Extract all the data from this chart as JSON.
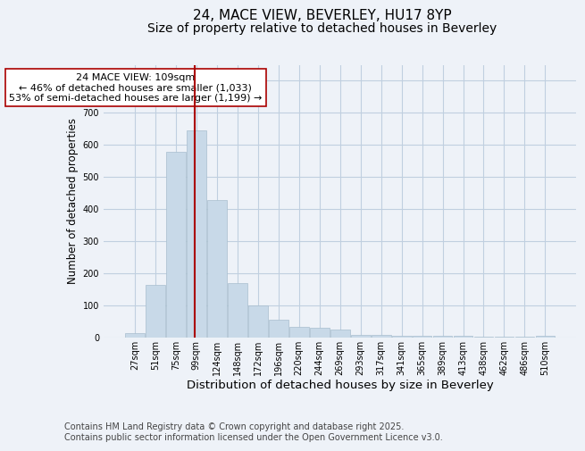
{
  "title1": "24, MACE VIEW, BEVERLEY, HU17 8YP",
  "title2": "Size of property relative to detached houses in Beverley",
  "xlabel": "Distribution of detached houses by size in Beverley",
  "ylabel": "Number of detached properties",
  "categories": [
    "27sqm",
    "51sqm",
    "75sqm",
    "99sqm",
    "124sqm",
    "148sqm",
    "172sqm",
    "196sqm",
    "220sqm",
    "244sqm",
    "269sqm",
    "293sqm",
    "317sqm",
    "341sqm",
    "365sqm",
    "389sqm",
    "413sqm",
    "438sqm",
    "462sqm",
    "486sqm",
    "510sqm"
  ],
  "values": [
    15,
    165,
    580,
    645,
    430,
    170,
    100,
    55,
    35,
    30,
    25,
    10,
    8,
    6,
    6,
    5,
    5,
    3,
    3,
    3,
    5
  ],
  "bar_color": "#c8d9e8",
  "bar_edge_color": "#a8bece",
  "vline_color": "#aa0000",
  "annotation_text": "24 MACE VIEW: 109sqm\n← 46% of detached houses are smaller (1,033)\n53% of semi-detached houses are larger (1,199) →",
  "annotation_box_color": "#ffffff",
  "annotation_box_edge": "#aa0000",
  "ylim": [
    0,
    850
  ],
  "yticks": [
    0,
    100,
    200,
    300,
    400,
    500,
    600,
    700,
    800
  ],
  "grid_color": "#c0cfe0",
  "background_color": "#eef2f8",
  "footer_text": "Contains HM Land Registry data © Crown copyright and database right 2025.\nContains public sector information licensed under the Open Government Licence v3.0.",
  "title1_fontsize": 11,
  "title2_fontsize": 10,
  "xlabel_fontsize": 9.5,
  "ylabel_fontsize": 8.5,
  "annotation_fontsize": 8,
  "footer_fontsize": 7,
  "tick_fontsize": 7
}
